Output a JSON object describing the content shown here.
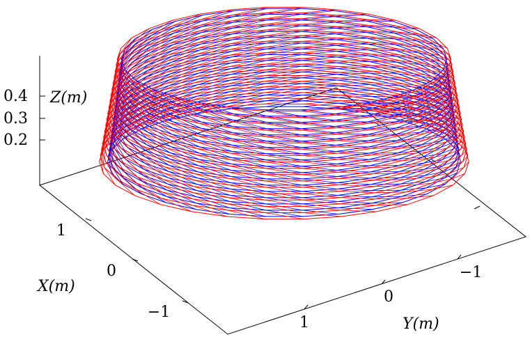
{
  "chart_data": {
    "type": "surface-wireframe",
    "xlabel": "X(m)",
    "ylabel": "Y(m)",
    "zlabel": "Z(m)",
    "x_ticks": [
      1,
      0,
      -1
    ],
    "y_ticks": [
      1,
      0,
      -1
    ],
    "z_ticks": [
      0.2,
      0.3,
      0.4
    ],
    "x_tick_labels": [
      "1",
      "0",
      "−1"
    ],
    "y_tick_labels": [
      "1",
      "0",
      "−1"
    ],
    "z_tick_labels": [
      "0.2",
      "0.3",
      "0.4"
    ],
    "xlim": [
      -1.6,
      1.6
    ],
    "ylim": [
      -1.6,
      1.6
    ],
    "zlim": [
      0.0,
      0.5
    ],
    "grid": false,
    "legend": "none",
    "series": [
      {
        "color": "#0000ff",
        "surface": "inner",
        "shape": "cylindrical band (truncated cone)",
        "radius_bottom": 1.28,
        "radius_top": 1.18,
        "z_range": [
          0.15,
          0.5
        ],
        "n_rings": 18,
        "n_segments": 30
      },
      {
        "color": "#ff0000",
        "surface": "outer",
        "shape": "cylindrical band (truncated cone)",
        "radius_bottom": 1.34,
        "radius_top": 1.21,
        "z_range": [
          0.15,
          0.5
        ],
        "n_rings": 18,
        "n_segments": 30
      }
    ]
  }
}
